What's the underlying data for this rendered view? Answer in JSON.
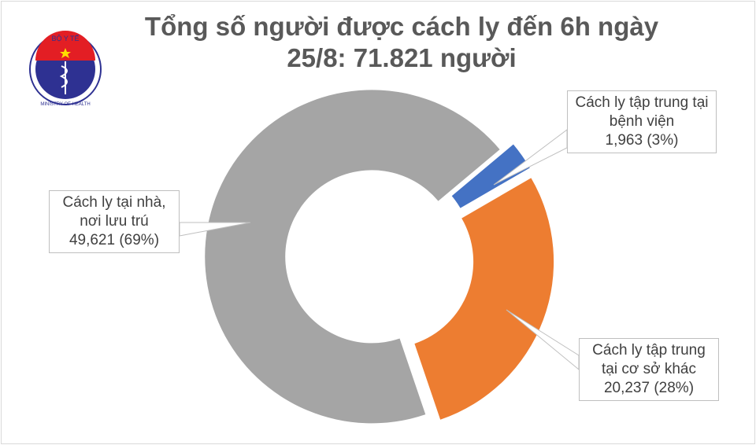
{
  "logo": {
    "text_top": "BỘ Y TẾ",
    "text_bottom": "MINISTRY OF HEALTH"
  },
  "chart_data": {
    "type": "pie",
    "donut": true,
    "title_lines": [
      "Tổng số người được cách ly đến 6h ngày",
      "25/8: 71.821 người"
    ],
    "slices": [
      {
        "label_lines": [
          "Cách ly tập trung tại",
          "bệnh viện"
        ],
        "value": 1963,
        "value_text": "1,963 (3%)",
        "percent": 3,
        "color": "#4472c4"
      },
      {
        "label_lines": [
          "Cách ly tập trung",
          "tại cơ sở khác"
        ],
        "value": 20237,
        "value_text": "20,237 (28%)",
        "percent": 28,
        "color": "#ed7d31"
      },
      {
        "label_lines": [
          "Cách ly tại nhà,",
          "nơi lưu trú"
        ],
        "value": 49621,
        "value_text": "49,621 (69%)",
        "percent": 69,
        "color": "#a5a5a5"
      }
    ],
    "legend": "none"
  }
}
